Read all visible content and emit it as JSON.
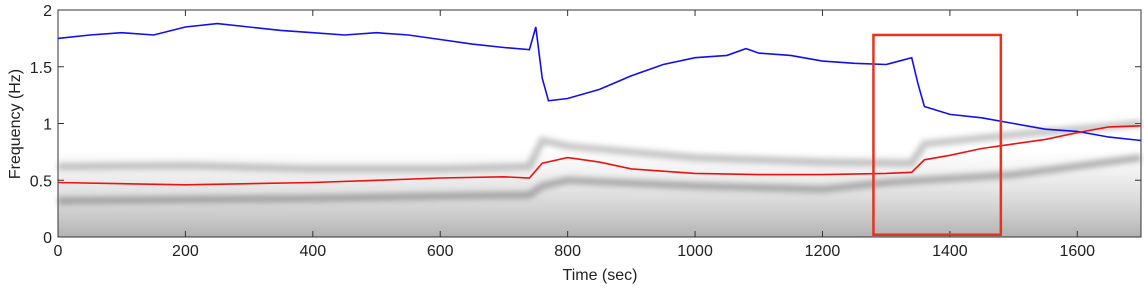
{
  "chart_data": {
    "type": "line",
    "x_label": "Time (sec)",
    "y_label": "Frequency (Hz)",
    "xlim": [
      0,
      1700
    ],
    "ylim": [
      0,
      2
    ],
    "xticks": [
      0,
      200,
      400,
      600,
      800,
      1000,
      1200,
      1400,
      1600
    ],
    "yticks": [
      0,
      0.5,
      1,
      1.5,
      2
    ],
    "series": [
      {
        "color": "#666666",
        "x": [
          0,
          200,
          400,
          600,
          740,
          760,
          800,
          1000,
          1200,
          1300,
          1500,
          1700
        ],
        "values": [
          0.32,
          0.33,
          0.34,
          0.36,
          0.37,
          0.45,
          0.5,
          0.45,
          0.42,
          0.48,
          0.55,
          0.7
        ]
      },
      {
        "color": "#888888",
        "x": [
          0,
          200,
          400,
          600,
          740,
          760,
          800,
          1000,
          1200,
          1340,
          1360,
          1500,
          1700
        ],
        "values": [
          0.62,
          0.63,
          0.6,
          0.6,
          0.62,
          0.85,
          0.8,
          0.7,
          0.66,
          0.65,
          0.82,
          0.9,
          1.0
        ]
      },
      {
        "color": "#1010ee",
        "x": [
          0,
          50,
          100,
          150,
          200,
          250,
          300,
          350,
          400,
          450,
          500,
          550,
          600,
          650,
          700,
          740,
          750,
          760,
          770,
          800,
          850,
          900,
          950,
          1000,
          1050,
          1080,
          1100,
          1150,
          1200,
          1250,
          1300,
          1340,
          1350,
          1360,
          1400,
          1450,
          1500,
          1550,
          1600,
          1650,
          1700
        ],
        "values": [
          1.75,
          1.78,
          1.8,
          1.78,
          1.85,
          1.88,
          1.85,
          1.82,
          1.8,
          1.78,
          1.8,
          1.78,
          1.74,
          1.7,
          1.67,
          1.65,
          1.85,
          1.4,
          1.2,
          1.22,
          1.3,
          1.42,
          1.52,
          1.58,
          1.6,
          1.66,
          1.62,
          1.6,
          1.55,
          1.53,
          1.52,
          1.58,
          1.35,
          1.15,
          1.08,
          1.05,
          1.0,
          0.95,
          0.93,
          0.88,
          0.85
        ]
      },
      {
        "color": "#ee1111",
        "x": [
          0,
          100,
          200,
          300,
          400,
          500,
          600,
          700,
          740,
          760,
          800,
          850,
          900,
          1000,
          1100,
          1200,
          1300,
          1340,
          1360,
          1400,
          1450,
          1500,
          1550,
          1600,
          1650,
          1700
        ],
        "values": [
          0.48,
          0.47,
          0.46,
          0.47,
          0.48,
          0.5,
          0.52,
          0.53,
          0.52,
          0.65,
          0.7,
          0.66,
          0.6,
          0.56,
          0.55,
          0.55,
          0.56,
          0.57,
          0.68,
          0.72,
          0.78,
          0.82,
          0.86,
          0.92,
          0.97,
          0.98
        ]
      }
    ],
    "highlight": {
      "xlim": [
        1280,
        1480
      ],
      "ylim": [
        0.02,
        1.78
      ],
      "color": "#e8321e"
    }
  }
}
